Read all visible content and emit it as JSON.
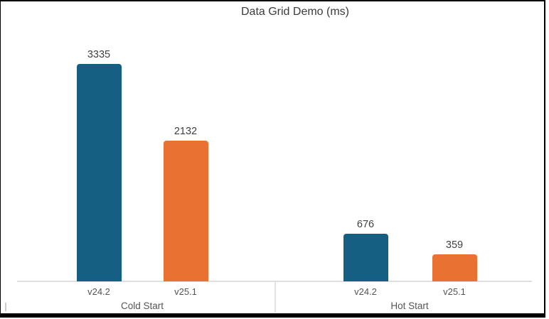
{
  "chart_data": {
    "type": "bar",
    "title": "Data Grid Demo (ms)",
    "categories": [
      "Cold Start",
      "Hot Start"
    ],
    "sub_categories": [
      "v24.2",
      "v25.1"
    ],
    "series": [
      {
        "name": "v24.2",
        "color": "#156082",
        "values": [
          3335,
          676
        ]
      },
      {
        "name": "v25.1",
        "color": "#E97132",
        "values": [
          2132,
          359
        ]
      }
    ],
    "groups": [
      {
        "label": "Cold Start",
        "bars": [
          {
            "name": "v24.2",
            "value": 3335,
            "color": "#156082"
          },
          {
            "name": "v25.1",
            "value": 2132,
            "color": "#E97132"
          }
        ]
      },
      {
        "label": "Hot Start",
        "bars": [
          {
            "name": "v24.2",
            "value": 676,
            "color": "#156082"
          },
          {
            "name": "v25.1",
            "value": 359,
            "color": "#E97132"
          }
        ]
      }
    ],
    "xlabel": "",
    "ylabel": "",
    "ylim": [
      0,
      3500
    ],
    "gridlines": false,
    "legend": "none",
    "value_labels": true,
    "colors": {
      "axis_line": "#DEDEDE",
      "title_text": "#3B3B3B",
      "value_label_text": "#404040",
      "category_label_text": "#545454",
      "window_border": "#000000",
      "background": "#FFFFFF"
    }
  }
}
